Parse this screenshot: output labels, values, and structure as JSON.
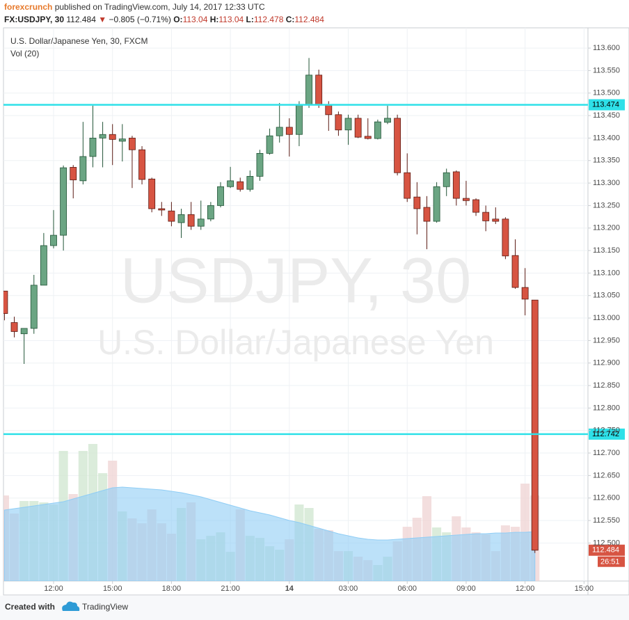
{
  "header": {
    "author": "forexcrunch",
    "published": "published on TradingView.com, July 14, 2017 12:33 UTC",
    "symbol": "FX:USDJPY, 30",
    "arrow": "▼",
    "change": "−0.805 (−0.71%)",
    "o_label": "O:",
    "h_label": "H:",
    "l_label": "L:",
    "c_label": "C:"
  },
  "footer": {
    "created": "Created with",
    "brand": "TradingView"
  },
  "chart_data": {
    "type": "candlestick",
    "title": "U.S. Dollar/Japanese Yen, 30, FXCM",
    "volume_label": "Vol (20)",
    "watermark": "USDJPY, 30",
    "watermark_subtitle": "U.S. Dollar/Japanese Yen",
    "countdown": "26:51",
    "x": [
      9.5,
      10,
      10.5,
      11,
      11.5,
      12,
      12.5,
      13,
      13.5,
      14,
      14.5,
      15,
      15.5,
      16,
      16.5,
      17,
      17.5,
      18,
      18.5,
      19,
      19.5,
      20,
      20.5,
      21,
      21.5,
      22,
      22.5,
      23,
      23.5,
      24,
      24.5,
      25,
      25.5,
      26,
      26.5,
      27,
      27.5,
      28,
      28.5,
      29,
      29.5,
      30,
      30.5,
      31,
      31.5,
      32,
      32.5,
      33,
      33.5,
      34,
      34.5,
      35,
      35.5,
      36,
      36.5
    ],
    "open": [
      113.06,
      112.99,
      112.965,
      112.977,
      113.073,
      113.161,
      113.184,
      113.335,
      113.305,
      113.359,
      113.4,
      113.408,
      113.393,
      113.4,
      113.374,
      113.309,
      113.243,
      113.238,
      113.212,
      113.23,
      113.204,
      113.22,
      113.25,
      113.292,
      113.303,
      113.286,
      113.315,
      113.366,
      113.405,
      113.424,
      113.408,
      113.475,
      113.54,
      113.475,
      113.452,
      113.418,
      113.444,
      113.404,
      113.399,
      113.435,
      113.444,
      113.323,
      113.269,
      113.246,
      113.215,
      113.292,
      113.325,
      113.266,
      113.263,
      113.235,
      113.22,
      113.22,
      113.139,
      113.068,
      113.04
    ],
    "high": [
      113.06,
      113.003,
      112.977,
      113.096,
      113.189,
      113.24,
      113.339,
      113.34,
      113.436,
      113.472,
      113.436,
      113.431,
      113.431,
      113.405,
      113.382,
      113.312,
      113.258,
      113.258,
      113.243,
      113.258,
      113.261,
      113.258,
      113.302,
      113.336,
      113.312,
      113.328,
      113.374,
      113.421,
      113.478,
      113.444,
      113.482,
      113.578,
      113.552,
      113.482,
      113.459,
      113.452,
      113.452,
      113.444,
      113.441,
      113.472,
      113.452,
      113.366,
      113.302,
      113.271,
      113.302,
      113.332,
      113.328,
      113.305,
      113.266,
      113.25,
      113.246,
      113.224,
      113.175,
      113.111,
      113.04
    ],
    "low": [
      112.995,
      112.957,
      112.898,
      112.965,
      113.073,
      113.155,
      113.15,
      113.266,
      113.297,
      113.335,
      113.335,
      113.34,
      113.348,
      113.289,
      113.297,
      113.235,
      113.227,
      113.204,
      113.178,
      113.196,
      113.196,
      113.215,
      113.246,
      113.289,
      113.281,
      113.281,
      113.305,
      113.363,
      113.39,
      113.359,
      113.382,
      113.467,
      113.467,
      113.416,
      113.405,
      113.385,
      113.4,
      113.397,
      113.397,
      113.431,
      113.317,
      113.258,
      113.186,
      113.153,
      113.212,
      113.271,
      113.25,
      113.25,
      113.227,
      113.193,
      113.209,
      113.131,
      113.065,
      113.006,
      112.478
    ],
    "close": [
      113.01,
      112.97,
      112.977,
      113.073,
      113.161,
      113.184,
      113.334,
      113.307,
      113.359,
      113.4,
      113.408,
      113.397,
      113.398,
      113.374,
      113.308,
      113.243,
      113.24,
      113.215,
      113.23,
      113.204,
      113.22,
      113.25,
      113.292,
      113.305,
      113.286,
      113.315,
      113.366,
      113.405,
      113.424,
      113.408,
      113.475,
      113.54,
      113.475,
      113.452,
      113.418,
      113.444,
      113.402,
      113.399,
      113.436,
      113.444,
      113.323,
      113.266,
      113.243,
      113.215,
      113.292,
      113.323,
      113.266,
      113.261,
      113.235,
      113.216,
      113.215,
      113.138,
      113.068,
      113.042,
      112.484
    ],
    "volume": [
      123,
      97,
      115,
      115,
      113,
      110,
      187,
      125,
      187,
      197,
      155,
      173,
      100,
      90,
      83,
      103,
      83,
      68,
      105,
      113,
      60,
      65,
      70,
      42,
      103,
      65,
      62,
      50,
      45,
      60,
      110,
      105,
      75,
      73,
      43,
      43,
      35,
      30,
      23,
      35,
      57,
      78,
      91,
      122,
      77,
      70,
      93,
      77,
      70,
      67,
      43,
      80,
      78,
      140,
      123
    ],
    "volume_ma": [
      102,
      104,
      106,
      108,
      110,
      112,
      114,
      118,
      122,
      126,
      130,
      134,
      135,
      134,
      133,
      132,
      131,
      129,
      127,
      124,
      121,
      117,
      113,
      109,
      105,
      101,
      98,
      95,
      91,
      87,
      84,
      80,
      76,
      72,
      68,
      65,
      62,
      60,
      59,
      59,
      60,
      61,
      62,
      63,
      64,
      65,
      66,
      67,
      68,
      68,
      69,
      69,
      70,
      70,
      71
    ],
    "up_color": "#6ba583",
    "up_border": "#225437",
    "down_color": "#d75442",
    "down_border": "#5b1a13",
    "up_volume_color": "#cfe6cf",
    "down_volume_color": "#efd3d3",
    "ma_color": "#8fcdf5",
    "hlines": [
      113.474,
      112.742
    ],
    "hline_color": "#2ee0e8",
    "xlim": [
      9.45,
      39.2
    ],
    "xticks": [
      {
        "value": 12,
        "label": "12:00"
      },
      {
        "value": 15,
        "label": "15:00"
      },
      {
        "value": 18,
        "label": "18:00"
      },
      {
        "value": 21,
        "label": "21:00"
      },
      {
        "value": 24,
        "label": "14"
      },
      {
        "value": 27,
        "label": "03:00"
      },
      {
        "value": 30,
        "label": "06:00"
      },
      {
        "value": 33,
        "label": "09:00"
      },
      {
        "value": 36,
        "label": "12:00"
      },
      {
        "value": 39,
        "label": "15:00"
      }
    ],
    "ylim": [
      112.4155,
      113.645
    ],
    "yticks": [
      {
        "value": 113.6,
        "label": "113.600"
      },
      {
        "value": 113.55,
        "label": "113.550"
      },
      {
        "value": 113.5,
        "label": "113.500"
      },
      {
        "value": 113.45,
        "label": "113.450"
      },
      {
        "value": 113.4,
        "label": "113.400"
      },
      {
        "value": 113.35,
        "label": "113.350"
      },
      {
        "value": 113.3,
        "label": "113.300"
      },
      {
        "value": 113.25,
        "label": "113.250"
      },
      {
        "value": 113.2,
        "label": "113.200"
      },
      {
        "value": 113.15,
        "label": "113.150"
      },
      {
        "value": 113.1,
        "label": "113.100"
      },
      {
        "value": 113.05,
        "label": "113.050"
      },
      {
        "value": 113.0,
        "label": "113.000"
      },
      {
        "value": 112.95,
        "label": "112.950"
      },
      {
        "value": 112.9,
        "label": "112.900"
      },
      {
        "value": 112.85,
        "label": "112.850"
      },
      {
        "value": 112.8,
        "label": "112.800"
      },
      {
        "value": 112.75,
        "label": "112.750"
      },
      {
        "value": 112.7,
        "label": "112.700"
      },
      {
        "value": 112.65,
        "label": "112.650"
      },
      {
        "value": 112.6,
        "label": "112.600"
      },
      {
        "value": 112.55,
        "label": "112.550"
      },
      {
        "value": 112.5,
        "label": "112.500"
      }
    ],
    "grid": true
  }
}
